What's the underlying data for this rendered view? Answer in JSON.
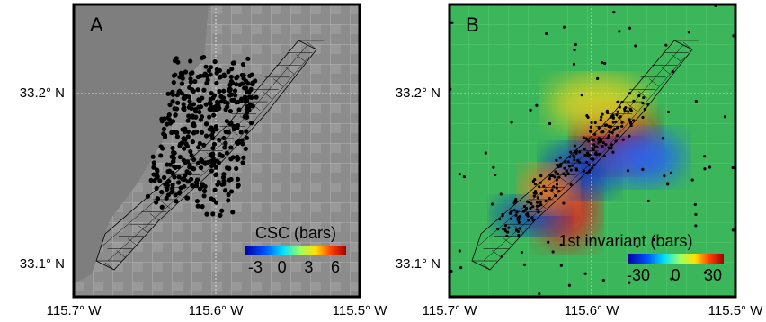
{
  "panels": [
    {
      "label": "A",
      "colorbar": {
        "title": "CSC (bars)",
        "ticks": [
          -3,
          0,
          3,
          6
        ]
      }
    },
    {
      "label": "B",
      "colorbar": {
        "title": "1st invariant (bars)",
        "ticks": [
          -30,
          0,
          30
        ]
      }
    }
  ],
  "lat_ticks": [
    "33.2° N",
    "33.1° N"
  ],
  "lon_ticks": [
    "115.7° W",
    "115.6° W",
    "115.5° W"
  ]
}
